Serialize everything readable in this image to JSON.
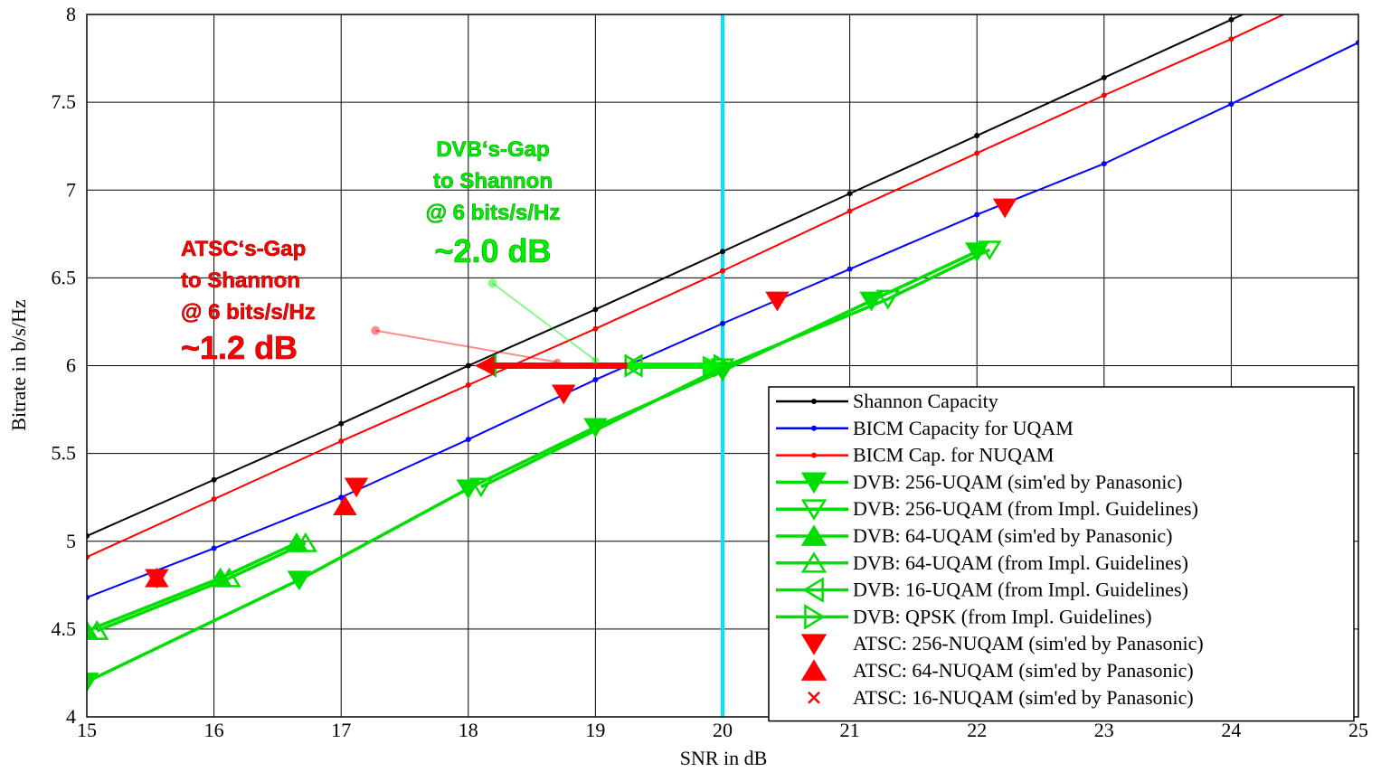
{
  "chart_data": {
    "type": "line",
    "xlabel": "SNR in dB",
    "ylabel": "Bitrate in b/s/Hz",
    "xlim": [
      15,
      25
    ],
    "ylim": [
      4,
      8
    ],
    "xticks": [
      "15",
      "16",
      "17",
      "18",
      "19",
      "20",
      "21",
      "22",
      "23",
      "24",
      "25"
    ],
    "yticks": [
      "4",
      "4.5",
      "5",
      "5.5",
      "6",
      "6.5",
      "7",
      "7.5",
      "8"
    ],
    "grid": true,
    "legend_placement": "bottom-right",
    "vline": {
      "x": 20,
      "color": "#00e5ff"
    },
    "series": [
      {
        "name": "Shannon Capacity",
        "color": "#000000",
        "style": "line-dot",
        "x": [
          15,
          16,
          17,
          18,
          19,
          20,
          21,
          22,
          23,
          24,
          25
        ],
        "y": [
          5.03,
          5.35,
          5.67,
          6.0,
          6.32,
          6.65,
          6.98,
          7.31,
          7.64,
          7.97,
          8.3
        ]
      },
      {
        "name": "BICM Capacity for UQAM",
        "color": "#0000ff",
        "style": "line-dot",
        "x": [
          15,
          16,
          17,
          18,
          19,
          20,
          21,
          22,
          23,
          24,
          25
        ],
        "y": [
          4.68,
          4.96,
          5.25,
          5.58,
          5.92,
          6.24,
          6.55,
          6.86,
          7.15,
          7.49,
          7.84
        ]
      },
      {
        "name": "BICM Cap. for NUQAM",
        "color": "#ff0000",
        "style": "line-dot",
        "x": [
          15,
          16,
          17,
          18,
          19,
          20,
          21,
          22,
          23,
          24,
          25
        ],
        "y": [
          4.91,
          5.24,
          5.57,
          5.89,
          6.21,
          6.54,
          6.88,
          7.21,
          7.54,
          7.86,
          8.2
        ]
      },
      {
        "name": "DVB: 256-UQAM (sim'ed by Panasonic)",
        "color": "#00dd00",
        "style": "line-marker",
        "marker": "tri-down-filled",
        "x": [
          15,
          16.67,
          18,
          19,
          20,
          21.17,
          22
        ],
        "y": [
          4.2,
          4.78,
          5.3,
          5.65,
          5.97,
          6.37,
          6.65
        ]
      },
      {
        "name": "DVB: 256-UQAM (from Impl. Guidelines)",
        "color": "#00dd00",
        "style": "line-marker",
        "marker": "tri-down-open",
        "x": [
          18.1,
          20,
          21.3,
          22.1
        ],
        "y": [
          5.31,
          5.99,
          6.38,
          6.66
        ]
      },
      {
        "name": "DVB: 64-UQAM (sim'ed by Panasonic)",
        "color": "#00dd00",
        "style": "line-marker",
        "marker": "tri-up-filled",
        "x": [
          15,
          16.05,
          16.65
        ],
        "y": [
          4.49,
          4.79,
          4.99
        ]
      },
      {
        "name": "DVB: 64-UQAM (from Impl. Guidelines)",
        "color": "#00dd00",
        "style": "line-marker",
        "marker": "tri-up-open",
        "x": [
          15.08,
          16.12,
          16.72
        ],
        "y": [
          4.49,
          4.79,
          4.99
        ]
      },
      {
        "name": "DVB: 16-UQAM (from Impl. Guidelines)",
        "color": "#00dd00",
        "style": "line-marker",
        "marker": "tri-left-open",
        "x": [
          18.15,
          19.3
        ],
        "y": [
          6.0,
          6.0
        ]
      },
      {
        "name": "DVB: QPSK (from Impl. Guidelines)",
        "color": "#00dd00",
        "style": "line-marker",
        "marker": "tri-right-open",
        "x": [
          19.3,
          20
        ],
        "y": [
          6.0,
          6.0
        ]
      },
      {
        "name": "ATSC: 256-NUQAM (sim'ed by Panasonic)",
        "color": "#ff0000",
        "style": "marker",
        "marker": "tri-down-filled",
        "x": [
          15.55,
          17.12,
          18.75,
          20.43,
          22.22
        ],
        "y": [
          4.79,
          5.31,
          5.84,
          6.37,
          6.9
        ]
      },
      {
        "name": "ATSC: 64-NUQAM (sim'ed by Panasonic)",
        "color": "#ff0000",
        "style": "marker",
        "marker": "tri-up-filled",
        "x": [
          15.55,
          17.03
        ],
        "y": [
          4.79,
          5.2
        ]
      },
      {
        "name": "ATSC: 16-NUQAM (sim'ed by Panasonic)",
        "color": "#ff0000",
        "style": "marker",
        "marker": "x",
        "x": [
          15.55
        ],
        "y": [
          4.79
        ]
      }
    ],
    "gap_arrows": [
      {
        "color": "#ff0000",
        "from": [
          19.25,
          6.0
        ],
        "to": [
          18.05,
          6.0
        ]
      },
      {
        "color": "#00ee00",
        "from": [
          19.25,
          6.0
        ],
        "to": [
          20.0,
          6.0
        ]
      }
    ],
    "annotations": [
      {
        "id": "atsc",
        "color": "#ff0000",
        "lines": [
          "ATSC‘s-Gap",
          "to Shannon",
          "@ 6 bits/s/Hz",
          "~1.2 dB"
        ],
        "pointer_from": [
          17.27,
          6.2
        ],
        "pointer_to": [
          18.7,
          6.02
        ]
      },
      {
        "id": "dvb",
        "color": "#00ee00",
        "lines": [
          "DVB‘s-Gap",
          "to Shannon",
          "@ 6 bits/s/Hz",
          "~2.0 dB"
        ],
        "pointer_from": [
          18.19,
          6.47
        ],
        "pointer_to": [
          19.0,
          6.03
        ]
      }
    ]
  }
}
